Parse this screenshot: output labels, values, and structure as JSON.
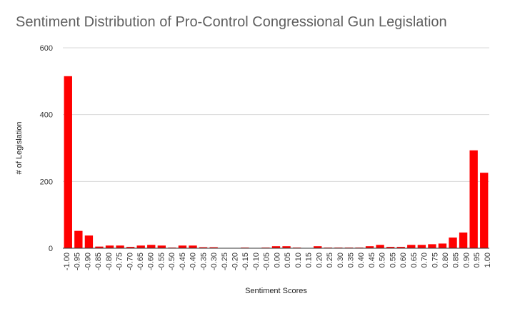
{
  "chart_data": {
    "type": "bar",
    "title": "Sentiment Distribution of Pro-Control Congressional Gun Legislation",
    "xlabel": "Sentiment Scores",
    "ylabel": "# of Legislation",
    "ylim": [
      0,
      600
    ],
    "yticks": [
      "0",
      "200",
      "400",
      "600"
    ],
    "grid": true,
    "legend": "none",
    "bar_color": "#ff0000",
    "x_tick_labels": [
      "-1.00",
      "-0.95",
      "-0.90",
      "-0.85",
      "-0.80",
      "-0.75",
      "-0.70",
      "-0.65",
      "-0.60",
      "-0.55",
      "-0.50",
      "-0.45",
      "-0.40",
      "-0.35",
      "-0.30",
      "-0.25",
      "-0.20",
      "-0.15",
      "-0.10",
      "-0.05",
      "0.00",
      "0.05",
      "0.10",
      "0.15",
      "0.20",
      "0.25",
      "0.30",
      "0.35",
      "0.40",
      "0.45",
      "0.50",
      "0.55",
      "0.60",
      "0.65",
      "0.70",
      "0.75",
      "0.80",
      "0.85",
      "0.90",
      "0.95",
      "1.00"
    ],
    "categories": [
      "-1.00",
      "-0.95",
      "-0.90",
      "-0.85",
      "-0.80",
      "-0.75",
      "-0.70",
      "-0.65",
      "-0.60",
      "-0.55",
      "-0.50",
      "-0.45",
      "-0.40",
      "-0.35",
      "-0.30",
      "-0.25",
      "-0.20",
      "-0.15",
      "-0.10",
      "-0.05",
      "0.00",
      "0.05",
      "0.10",
      "0.15",
      "0.20",
      "0.25",
      "0.30",
      "0.35",
      "0.40",
      "0.45",
      "0.50",
      "0.55",
      "0.60",
      "0.65",
      "0.70",
      "0.75",
      "0.80",
      "0.85",
      "0.90",
      "0.95",
      "1.00"
    ],
    "values": [
      515,
      52,
      38,
      5,
      8,
      8,
      4,
      8,
      10,
      8,
      2,
      8,
      8,
      3,
      3,
      0,
      0,
      2,
      0,
      2,
      6,
      6,
      2,
      0,
      6,
      2,
      2,
      2,
      2,
      6,
      10,
      4,
      4,
      10,
      10,
      12,
      14,
      32,
      47,
      293,
      226
    ]
  }
}
